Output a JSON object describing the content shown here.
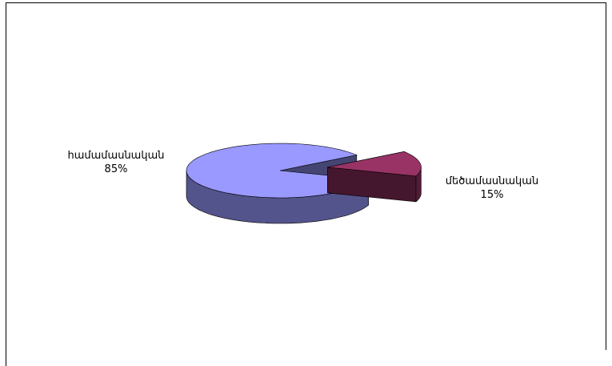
{
  "chart_data": {
    "type": "pie3d",
    "categories": [
      "համամասնական",
      "մեծամասնական"
    ],
    "values": [
      85,
      15
    ],
    "value_labels": [
      "85%",
      "15%"
    ],
    "colors": [
      "#9999ff",
      "#993366"
    ],
    "exploded": [
      false,
      true
    ]
  }
}
